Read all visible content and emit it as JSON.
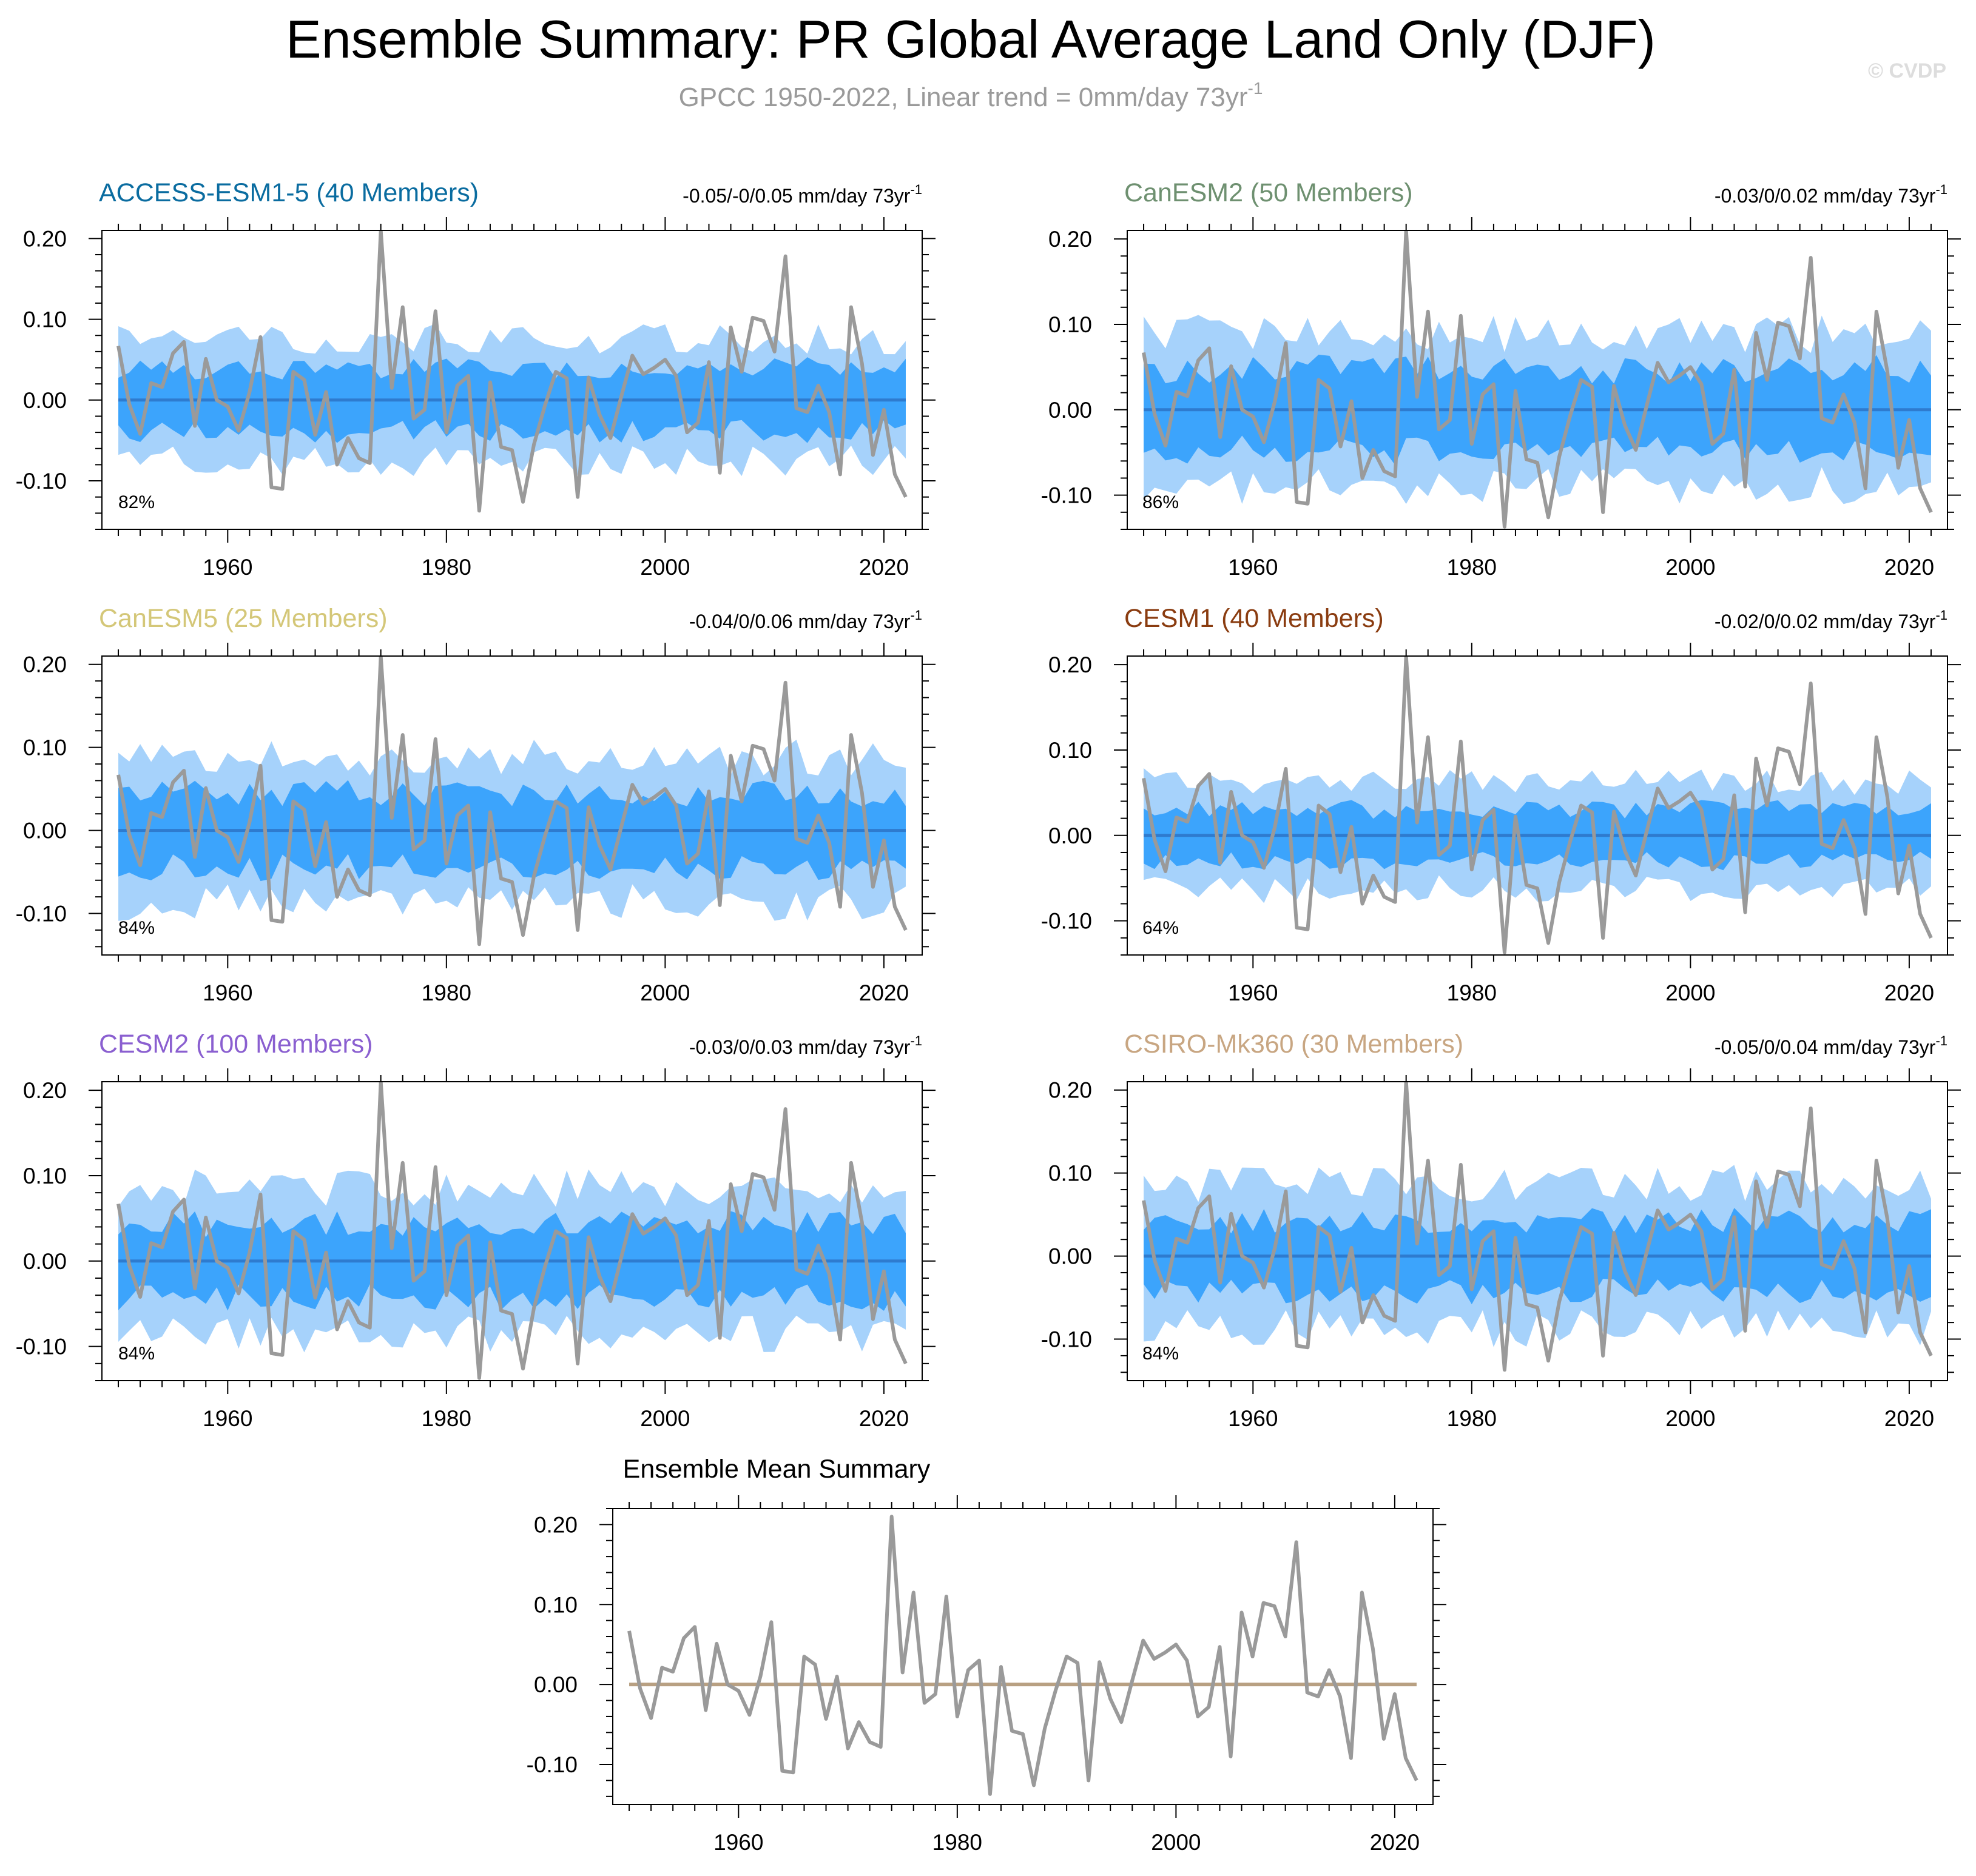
{
  "page": {
    "title": "Ensemble Summary: PR Global Average Land Only (DJF)",
    "subtitle_main": "GPCC 1950-2022, Linear trend = 0mm/day 73yr",
    "subtitle_sup": "-1",
    "watermark": "© CVDP"
  },
  "colors": {
    "outer_band": "#a6d2fb",
    "inner_band": "#3ca4fc",
    "ensemble_mean_line": "#2e7bcf",
    "obs_line": "#9a9a9a",
    "mean_panel_line": "#b8a082",
    "access_title": "#0a6ca0",
    "canesm2_title": "#6e9070",
    "canesm5_title": "#d4c778",
    "cesm1_title": "#8a3c10",
    "cesm2_title": "#8a5fd0",
    "csiro_title": "#c8a682"
  },
  "chart_data": [
    {
      "type": "line",
      "title": "ACCESS-ESM1-5 (40 Members)",
      "trend_text": "-0.05/-0/0.05 mm/day 73yr",
      "trend_sup": "-1",
      "percent": "82%",
      "ylim": [
        -0.16,
        0.21
      ],
      "xlim": [
        1948.5,
        2023.5
      ],
      "xticks": [
        "1960",
        "1980",
        "2000",
        "2020"
      ],
      "yticks": [
        "0.20",
        "0.10",
        "0.00",
        "-0.10"
      ],
      "outer_spread": 0.078,
      "inner_spread": 0.041,
      "seed": 11
    },
    {
      "type": "line",
      "title": "CanESM2 (50 Members)",
      "trend_text": "-0.03/0/0.02 mm/day 73yr",
      "trend_sup": "-1",
      "percent": "86%",
      "ylim": [
        -0.14,
        0.21
      ],
      "xlim": [
        1948.5,
        2023.5
      ],
      "xticks": [
        "1960",
        "1980",
        "2000",
        "2020"
      ],
      "yticks": [
        "0.20",
        "0.10",
        "0.00",
        "-0.10"
      ],
      "outer_spread": 0.092,
      "inner_spread": 0.05,
      "seed": 23
    },
    {
      "type": "line",
      "title": "CanESM5 (25 Members)",
      "trend_text": "-0.04/0/0.06 mm/day 73yr",
      "trend_sup": "-1",
      "percent": "84%",
      "ylim": [
        -0.15,
        0.21
      ],
      "xlim": [
        1948.5,
        2023.5
      ],
      "xticks": [
        "1960",
        "1980",
        "2000",
        "2020"
      ],
      "yticks": [
        "0.20",
        "0.10",
        "0.00",
        "-0.10"
      ],
      "outer_spread": 0.09,
      "inner_spread": 0.047,
      "seed": 37
    },
    {
      "type": "line",
      "title": "CESM1 (40 Members)",
      "trend_text": "-0.02/0/0.02 mm/day 73yr",
      "trend_sup": "-1",
      "percent": "64%",
      "ylim": [
        -0.14,
        0.21
      ],
      "xlim": [
        1948.5,
        2023.5
      ],
      "xticks": [
        "1960",
        "1980",
        "2000",
        "2020"
      ],
      "yticks": [
        "0.20",
        "0.10",
        "0.00",
        "-0.10"
      ],
      "outer_spread": 0.065,
      "inner_spread": 0.032,
      "seed": 41
    },
    {
      "type": "line",
      "title": "CESM2 (100 Members)",
      "trend_text": "-0.03/0/0.03 mm/day 73yr",
      "trend_sup": "-1",
      "percent": "84%",
      "ylim": [
        -0.14,
        0.21
      ],
      "xlim": [
        1948.5,
        2023.5
      ],
      "xticks": [
        "1960",
        "1980",
        "2000",
        "2020"
      ],
      "yticks": [
        "0.20",
        "0.10",
        "0.00",
        "-0.10"
      ],
      "outer_spread": 0.088,
      "inner_spread": 0.045,
      "seed": 53
    },
    {
      "type": "line",
      "title": "CSIRO-Mk360 (30 Members)",
      "trend_text": "-0.05/0/0.04 mm/day 73yr",
      "trend_sup": "-1",
      "percent": "84%",
      "ylim": [
        -0.15,
        0.21
      ],
      "xlim": [
        1948.5,
        2023.5
      ],
      "xticks": [
        "1960",
        "1980",
        "2000",
        "2020"
      ],
      "yticks": [
        "0.20",
        "0.10",
        "0.00",
        "-0.10"
      ],
      "outer_spread": 0.09,
      "inner_spread": 0.045,
      "seed": 67
    },
    {
      "type": "line",
      "title": "Ensemble Mean Summary",
      "ylim": [
        -0.15,
        0.22
      ],
      "xlim": [
        1948.5,
        2023.5
      ],
      "xticks": [
        "1960",
        "1980",
        "2000",
        "2020"
      ],
      "yticks": [
        "0.20",
        "0.10",
        "0.00",
        "-0.10"
      ]
    }
  ],
  "observations": {
    "name": "GPCC",
    "years": [
      1950,
      1951,
      1952,
      1953,
      1954,
      1955,
      1956,
      1957,
      1958,
      1959,
      1960,
      1961,
      1962,
      1963,
      1964,
      1965,
      1966,
      1967,
      1968,
      1969,
      1970,
      1971,
      1972,
      1973,
      1974,
      1975,
      1976,
      1977,
      1978,
      1979,
      1980,
      1981,
      1982,
      1983,
      1984,
      1985,
      1986,
      1987,
      1988,
      1989,
      1990,
      1991,
      1992,
      1993,
      1994,
      1995,
      1996,
      1997,
      1998,
      1999,
      2000,
      2001,
      2002,
      2003,
      2004,
      2005,
      2006,
      2007,
      2008,
      2009,
      2010,
      2011,
      2012,
      2013,
      2014,
      2015,
      2016,
      2017,
      2018,
      2019,
      2020,
      2021,
      2022
    ],
    "values": [
      0.067,
      -0.005,
      -0.042,
      0.021,
      0.016,
      0.058,
      0.072,
      -0.032,
      0.051,
      0.0,
      -0.008,
      -0.038,
      0.01,
      0.078,
      -0.108,
      -0.11,
      0.035,
      0.025,
      -0.043,
      0.01,
      -0.08,
      -0.047,
      -0.072,
      -0.078,
      0.21,
      0.015,
      0.115,
      -0.023,
      -0.012,
      0.11,
      -0.04,
      0.018,
      0.03,
      -0.137,
      0.022,
      -0.058,
      -0.062,
      -0.126,
      -0.055,
      -0.007,
      0.035,
      0.027,
      -0.12,
      0.028,
      -0.018,
      -0.047,
      0.005,
      0.055,
      0.032,
      0.04,
      0.05,
      0.03,
      -0.04,
      -0.028,
      0.047,
      -0.09,
      0.09,
      0.035,
      0.102,
      0.098,
      0.06,
      0.178,
      -0.01,
      -0.015,
      0.018,
      -0.015,
      -0.092,
      0.115,
      0.045,
      -0.068,
      -0.012,
      -0.092,
      -0.12
    ]
  }
}
